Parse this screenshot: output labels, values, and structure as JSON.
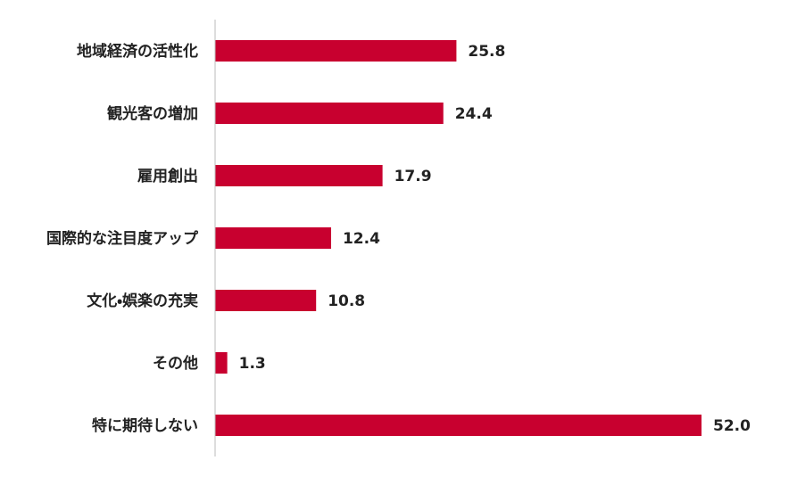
{
  "chart_data": {
    "type": "hbar",
    "categories": [
      "地域経済の活性化",
      "観光客の増加",
      "雇用創出",
      "国際的な注目度アップ",
      "文化・娯楽の充実",
      "その他",
      "特に期待しない"
    ],
    "values": [
      25.8,
      24.4,
      17.9,
      12.4,
      10.8,
      1.3,
      52.0
    ],
    "value_labels": [
      "25.8",
      "24.4",
      "17.9",
      "12.4",
      "10.8",
      "1.3",
      "52.0"
    ],
    "color": "#c8002f"
  }
}
